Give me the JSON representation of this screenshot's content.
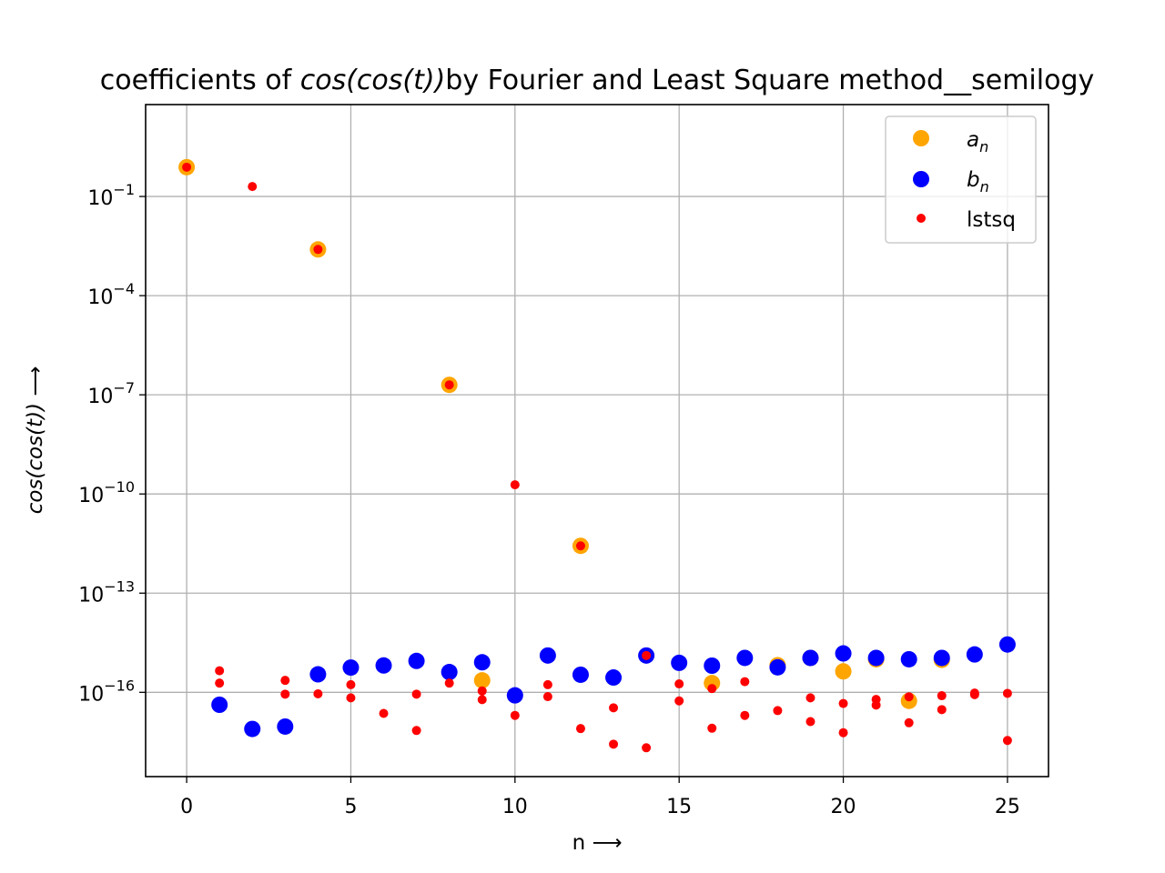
{
  "chart_data": {
    "type": "scatter",
    "title": {
      "prefix": "coefficients of ",
      "math": "cos(cos(t))",
      "suffix": "by Fourier and Least Square method__semilogy"
    },
    "xlabel": "n ⟶",
    "ylabel": "cos(cos(t)) ⟶",
    "y_scale": "log",
    "x_range": [
      -1.25,
      26.25
    ],
    "y_range_log10": [
      -18.55,
      1.78
    ],
    "x_ticks": [
      0,
      5,
      10,
      15,
      20,
      25
    ],
    "x_tick_labels": [
      "0",
      "5",
      "10",
      "15",
      "20",
      "25"
    ],
    "y_ticks_log10": [
      -16,
      -13,
      -10,
      -7,
      -4,
      -1
    ],
    "y_tick_labels": [
      {
        "base": "10",
        "exp": "−16"
      },
      {
        "base": "10",
        "exp": "−13"
      },
      {
        "base": "10",
        "exp": "−10"
      },
      {
        "base": "10",
        "exp": "−7"
      },
      {
        "base": "10",
        "exp": "−4"
      },
      {
        "base": "10",
        "exp": "−1"
      }
    ],
    "grid": true,
    "legend_position": "top-right",
    "series": [
      {
        "name": "a_n",
        "legend": {
          "base": "a",
          "sub": "n"
        },
        "color": "#ffa500",
        "marker": "large-dot",
        "x": [
          0,
          4,
          8,
          9,
          12,
          16,
          18,
          19,
          20,
          21,
          22,
          23
        ],
        "y": [
          0.77,
          0.0025,
          2e-07,
          2.3e-16,
          2.7e-12,
          1.9e-16,
          6.6e-16,
          1.1e-15,
          4.3e-16,
          1e-15,
          5.5e-17,
          9.6e-16
        ]
      },
      {
        "name": "b_n",
        "legend": {
          "base": "b",
          "sub": "n"
        },
        "color": "#0000ff",
        "marker": "large-dot",
        "x": [
          1,
          2,
          3,
          4,
          5,
          6,
          7,
          8,
          9,
          10,
          11,
          12,
          13,
          14,
          15,
          16,
          17,
          18,
          19,
          20,
          21,
          22,
          23,
          24,
          25
        ],
        "y": [
          4.2e-17,
          7.8e-18,
          9.2e-18,
          3.5e-16,
          5.6e-16,
          6.5e-16,
          8.9e-16,
          4.1e-16,
          8.1e-16,
          8.1e-17,
          1.3e-15,
          3.4e-16,
          2.8e-16,
          1.3e-15,
          7.8e-16,
          6.4e-16,
          1.1e-15,
          5.7e-16,
          1.1e-15,
          1.5e-15,
          1.1e-15,
          1e-15,
          1.1e-15,
          1.4e-15,
          2.8e-15
        ]
      },
      {
        "name": "lstsq",
        "legend": {
          "base": "lstsq",
          "sub": ""
        },
        "color": "#ff0000",
        "marker": "small-dot",
        "x": [
          0,
          1,
          1,
          2,
          3,
          3,
          4,
          4,
          5,
          5,
          6,
          7,
          7,
          8,
          8,
          9,
          9,
          10,
          10,
          11,
          11,
          12,
          12,
          13,
          13,
          14,
          14,
          15,
          15,
          16,
          16,
          17,
          17,
          18,
          19,
          19,
          20,
          20,
          21,
          21,
          22,
          22,
          23,
          23,
          24,
          24,
          25,
          25
        ],
        "y": [
          0.77,
          4.5e-16,
          1.9e-16,
          0.2,
          8.8e-17,
          2.3e-16,
          0.0025,
          9e-17,
          1.7e-16,
          6.8e-17,
          2.3e-17,
          8.8e-17,
          7e-18,
          2e-07,
          1.9e-16,
          6e-17,
          1.1e-16,
          1.9e-10,
          2e-17,
          1.7e-16,
          7.4e-17,
          2.7e-12,
          8e-18,
          3.4e-17,
          2.7e-18,
          1.3e-15,
          2.1e-18,
          1.8e-16,
          5.5e-17,
          8.2e-18,
          1.3e-16,
          2e-17,
          2.1e-16,
          2.8e-17,
          6.8e-17,
          1.3e-17,
          4.6e-17,
          6e-18,
          6.1e-17,
          4.1e-17,
          7.3e-17,
          1.2e-17,
          7.9e-17,
          3e-17,
          8.5e-17,
          9.5e-17,
          9.3e-17,
          3.5e-18
        ]
      }
    ]
  }
}
